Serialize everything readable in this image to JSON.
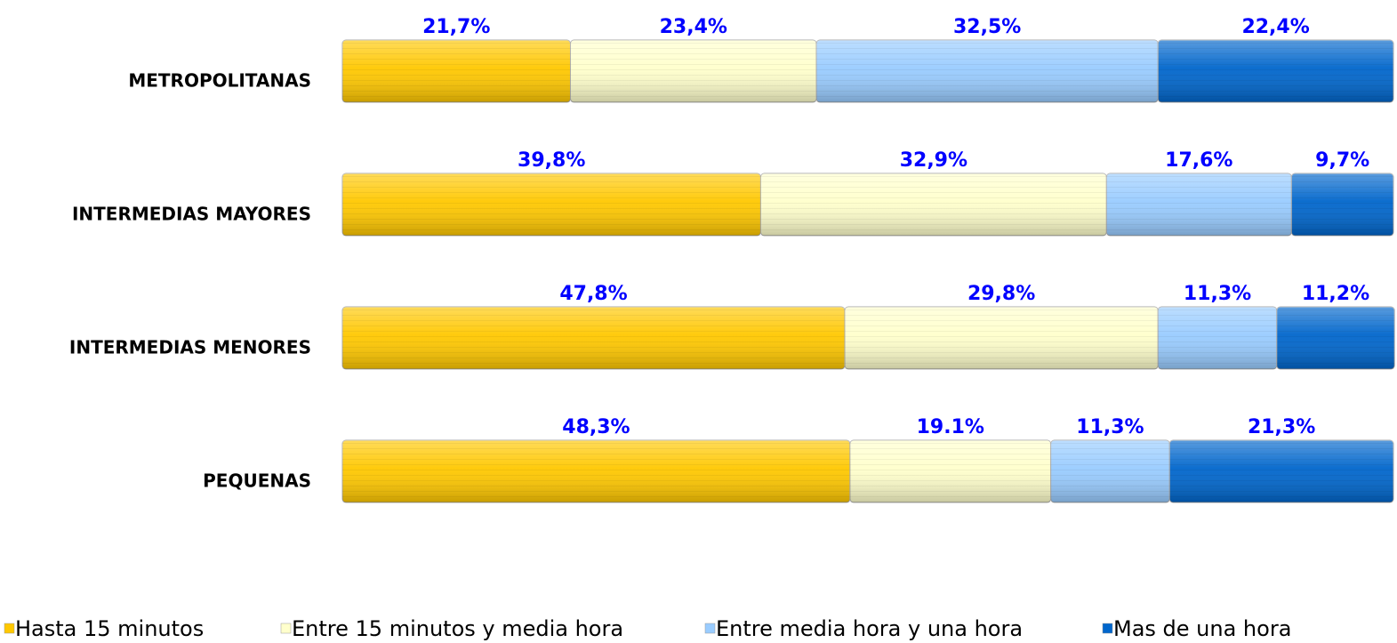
{
  "chart_data": {
    "type": "stacked_bar_horizontal",
    "categories": [
      "METROPOLITANAS",
      "INTERMEDIAS MAYORES",
      "INTERMEDIAS MENORES",
      "PEQUENAS"
    ],
    "series": [
      {
        "name": "Hasta 15 minutos",
        "color": "#ffc800",
        "values": [
          21.7,
          39.8,
          47.8,
          48.3
        ],
        "value_labels": [
          "21,7%",
          "39,8%",
          "47,8%",
          "48,3%"
        ]
      },
      {
        "name": "Entre 15 minutos y media hora",
        "color": "#ffffcc",
        "values": [
          23.4,
          32.9,
          29.8,
          19.1
        ],
        "value_labels": [
          "23,4%",
          "32,9%",
          "29,8%",
          "19.1%"
        ]
      },
      {
        "name": "Entre media hora y una hora",
        "color": "#99ccff",
        "values": [
          32.5,
          17.6,
          11.3,
          11.3
        ],
        "value_labels": [
          "32,5%",
          "17,6%",
          "11,3%",
          "11,3%"
        ]
      },
      {
        "name": "Mas de una hora",
        "color": "#0066cc",
        "values": [
          22.4,
          9.7,
          11.2,
          21.3
        ],
        "value_labels": [
          "22,4%",
          "9,7%",
          "11,2%",
          "21,3%"
        ]
      }
    ],
    "xlim": [
      0,
      100
    ]
  }
}
